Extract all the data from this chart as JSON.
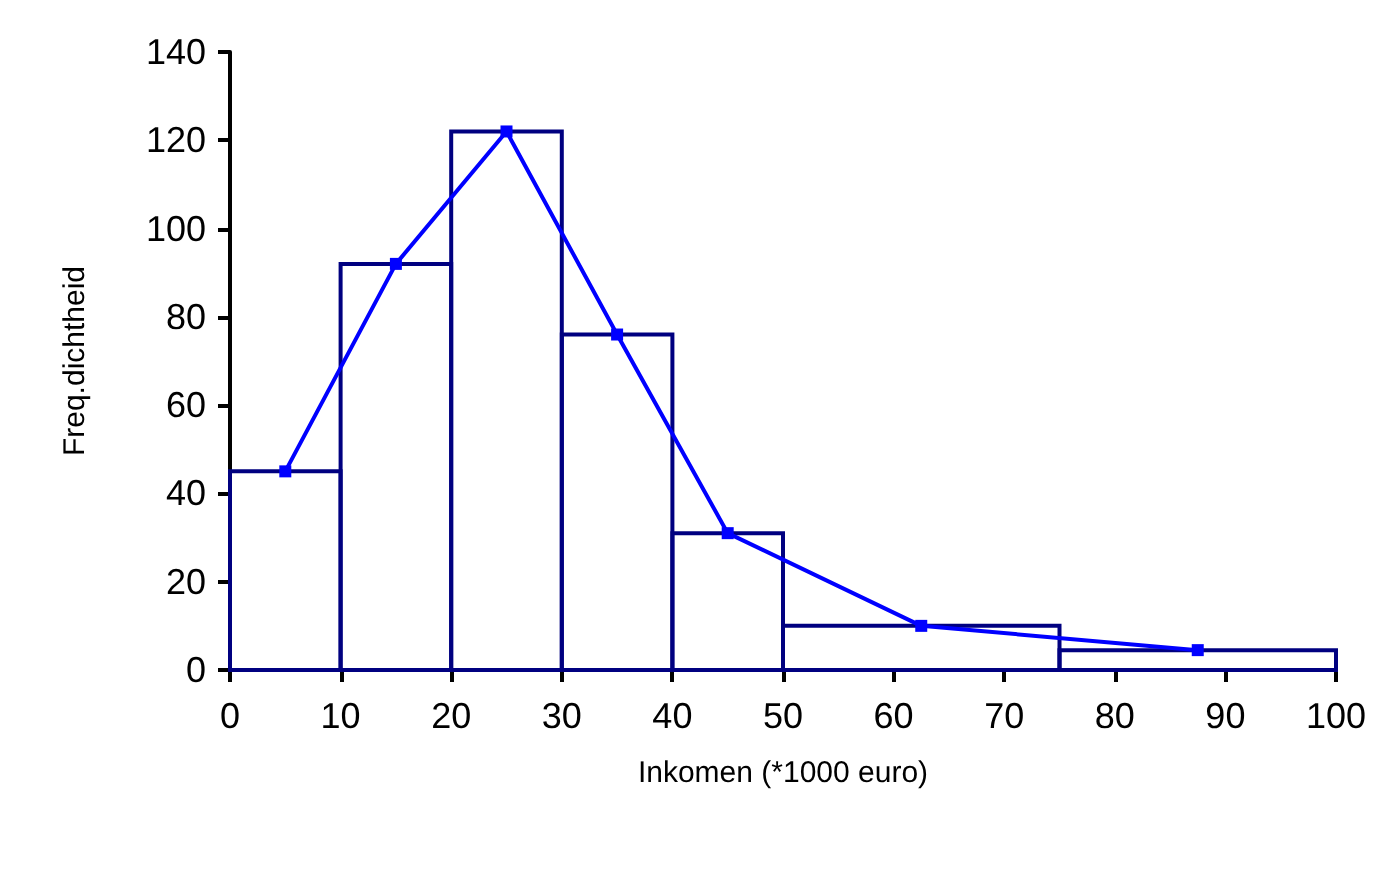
{
  "chart_data": {
    "type": "histogram",
    "xlabel": "Inkomen (*1000 euro)",
    "ylabel": "Freq.dichtheid",
    "xlim": [
      0,
      100
    ],
    "xticks": [
      0,
      10,
      20,
      30,
      40,
      50,
      60,
      70,
      80,
      90,
      100
    ],
    "ylim": [
      0,
      140
    ],
    "yticks": [
      0,
      20,
      40,
      60,
      80,
      100,
      120,
      140
    ],
    "grid": false,
    "series": [
      {
        "type": "histogram",
        "color": "#000080",
        "bins": [
          0,
          10,
          20,
          30,
          40,
          50,
          75,
          100
        ],
        "values": [
          45,
          92,
          122,
          76,
          31,
          10,
          4.5
        ]
      },
      {
        "type": "line",
        "color": "#0000ff",
        "marker": "square",
        "line_style": "solid",
        "x": [
          5,
          15,
          25,
          35,
          45,
          62.5,
          87.5
        ],
        "values": [
          45,
          92,
          122,
          76,
          31,
          10,
          4.5
        ]
      }
    ]
  }
}
